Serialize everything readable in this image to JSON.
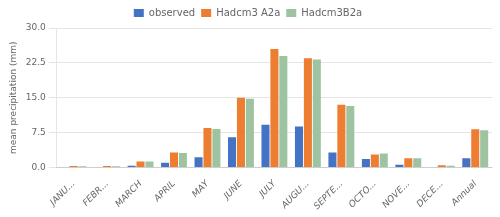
{
  "chart_data": {
    "type": "bar",
    "categories": [
      "JANU...",
      "FEBR...",
      "MARCH",
      "APRIL",
      "MAY",
      "JUNE",
      "JULY",
      "AUGU...",
      "SEPTE...",
      "OCTO...",
      "NOVE...",
      "DECE...",
      "Annual"
    ],
    "series": [
      {
        "name": "observed",
        "color": "#4472C4",
        "values": [
          0.1,
          0.1,
          0.35,
          1.0,
          2.2,
          6.5,
          9.2,
          8.8,
          3.2,
          1.8,
          0.6,
          0.1,
          2.0
        ]
      },
      {
        "name": "Hadcm3 A2a",
        "color": "#ED7D31",
        "values": [
          0.3,
          0.3,
          1.3,
          3.2,
          8.5,
          15.0,
          25.5,
          23.5,
          13.5,
          2.8,
          2.0,
          0.5,
          8.2
        ]
      },
      {
        "name": "Hadcm3B2a",
        "color": "#9DC3A0",
        "values": [
          0.25,
          0.25,
          1.3,
          3.1,
          8.3,
          14.8,
          24.0,
          23.2,
          13.2,
          3.0,
          2.0,
          0.35,
          8.0
        ]
      }
    ],
    "ylabel": "mean precipitation (mm)",
    "ylim": [
      0,
      30
    ],
    "yticks": [
      {
        "value": 0,
        "label": "0.0"
      },
      7.5,
      {
        "value": 15,
        "label": "15.0"
      },
      22.5,
      {
        "value": 30,
        "label": "30.0"
      }
    ],
    "grid": true,
    "legend": "top"
  }
}
